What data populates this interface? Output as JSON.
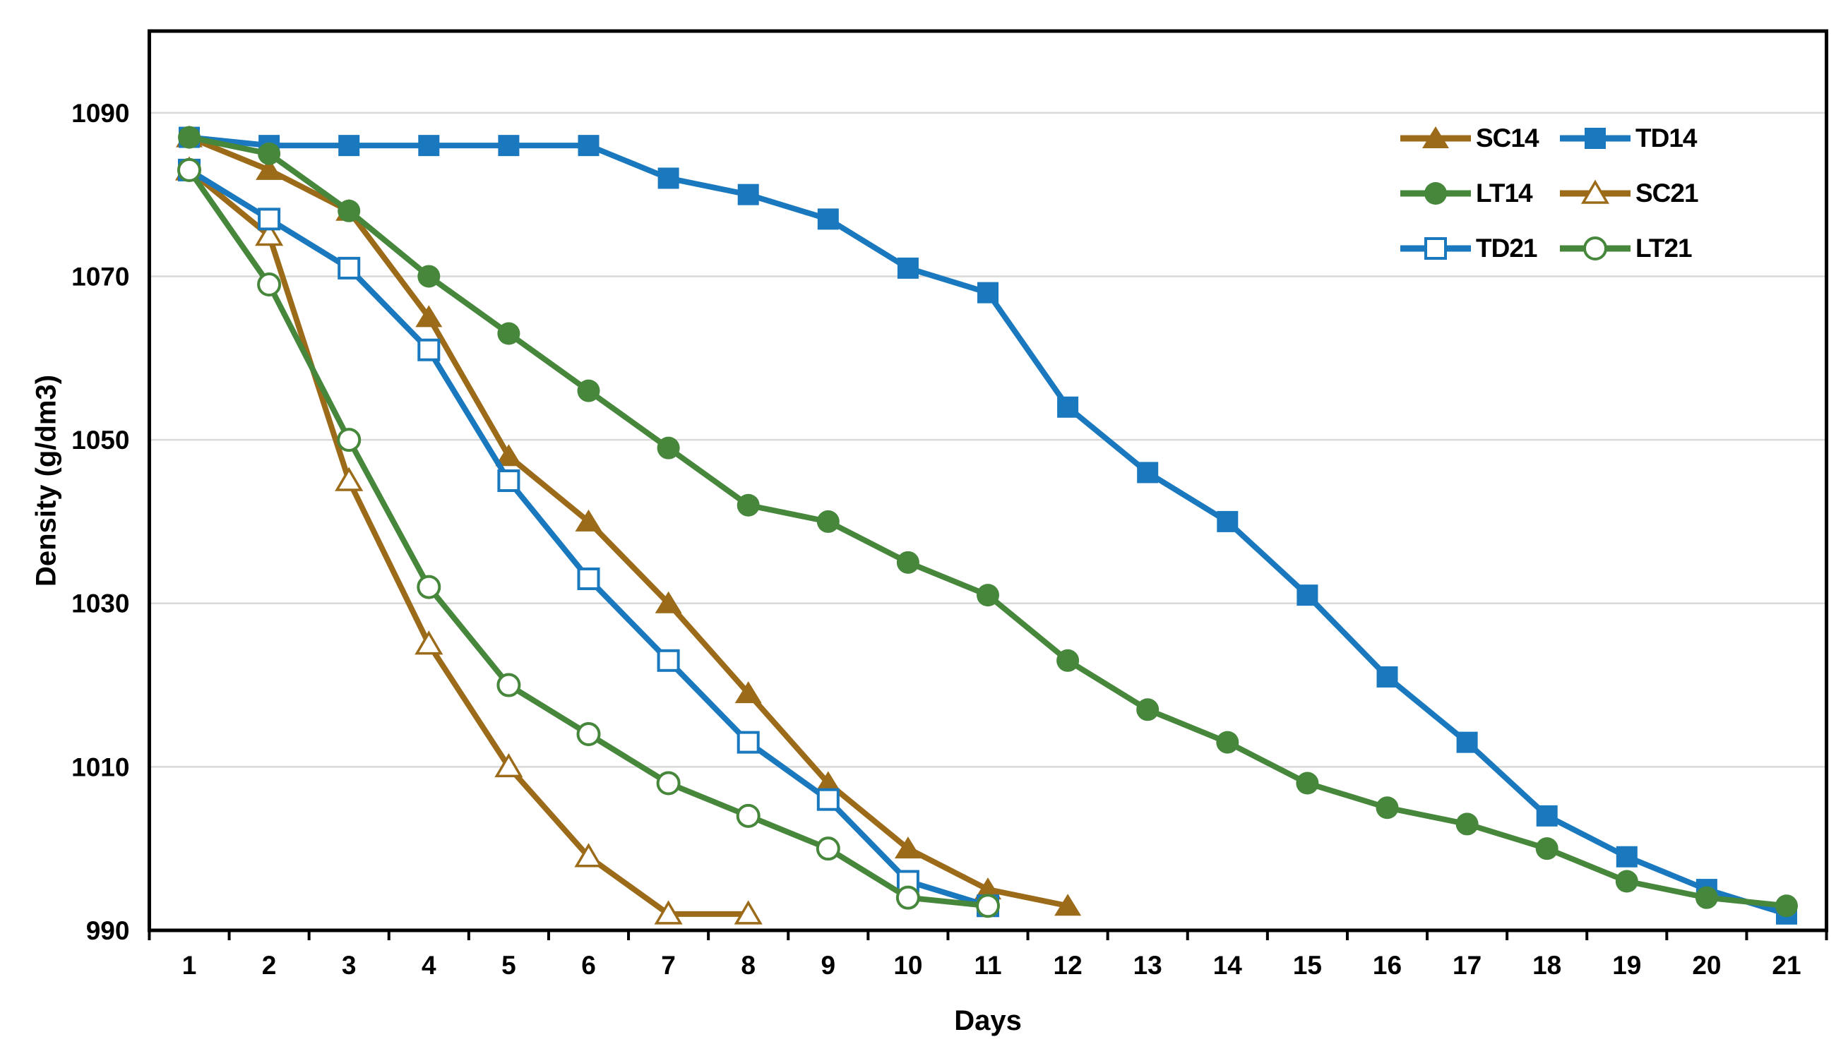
{
  "chart_data": {
    "type": "line",
    "title": "",
    "xlabel": "Days",
    "ylabel": "Density (g/dm3)",
    "x": [
      1,
      2,
      3,
      4,
      5,
      6,
      7,
      8,
      9,
      10,
      11,
      12,
      13,
      14,
      15,
      16,
      17,
      18,
      19,
      20,
      21
    ],
    "ylim": [
      990,
      1100
    ],
    "yticks": [
      990,
      1010,
      1030,
      1050,
      1070,
      1090
    ],
    "grid": "horizontal",
    "gridline_color": "#D9D9D9",
    "axis_color": "#000000",
    "background_color": "#FFFFFF",
    "text_color": "#000000",
    "legend_position": "top-right-inside",
    "legend_order": [
      "SC14",
      "TD14",
      "LT14",
      "SC21",
      "TD21",
      "LT21"
    ],
    "series": [
      {
        "name": "SC14",
        "color": "#9C6B1A",
        "marker": "triangle-filled",
        "start_day": 1,
        "values": [
          1087,
          1083,
          1078,
          1065,
          1048,
          1040,
          1030,
          1019,
          1008,
          1000,
          995,
          993
        ]
      },
      {
        "name": "TD14",
        "color": "#1A79BE",
        "marker": "square-filled",
        "start_day": 1,
        "values": [
          1087,
          1086,
          1086,
          1086,
          1086,
          1086,
          1082,
          1080,
          1077,
          1071,
          1068,
          1054,
          1046,
          1040,
          1031,
          1021,
          1013,
          1004,
          999,
          995,
          992
        ]
      },
      {
        "name": "LT14",
        "color": "#46873C",
        "marker": "circle-filled",
        "start_day": 1,
        "values": [
          1087,
          1085,
          1078,
          1070,
          1063,
          1056,
          1049,
          1042,
          1040,
          1035,
          1031,
          1023,
          1017,
          1013,
          1008,
          1005,
          1003,
          1000,
          996,
          994,
          993
        ]
      },
      {
        "name": "SC21",
        "color": "#9C6B1A",
        "marker": "triangle-open",
        "start_day": 1,
        "values": [
          1083,
          1075,
          1045,
          1025,
          1010,
          999,
          992,
          992
        ]
      },
      {
        "name": "TD21",
        "color": "#1A79BE",
        "marker": "square-open",
        "start_day": 1,
        "values": [
          1083,
          1077,
          1071,
          1061,
          1045,
          1033,
          1023,
          1013,
          1006,
          996,
          993
        ]
      },
      {
        "name": "LT21",
        "color": "#46873C",
        "marker": "circle-open",
        "start_day": 1,
        "values": [
          1083,
          1069,
          1050,
          1032,
          1020,
          1014,
          1008,
          1004,
          1000,
          994,
          993
        ]
      }
    ],
    "layout": {
      "x0": 268,
      "dx": 113.1,
      "y_top": 44,
      "y_bottom": 1318,
      "frame_stroke": 5,
      "line_width": 8,
      "tick_len": 14,
      "tick_font_size": 37
    }
  }
}
